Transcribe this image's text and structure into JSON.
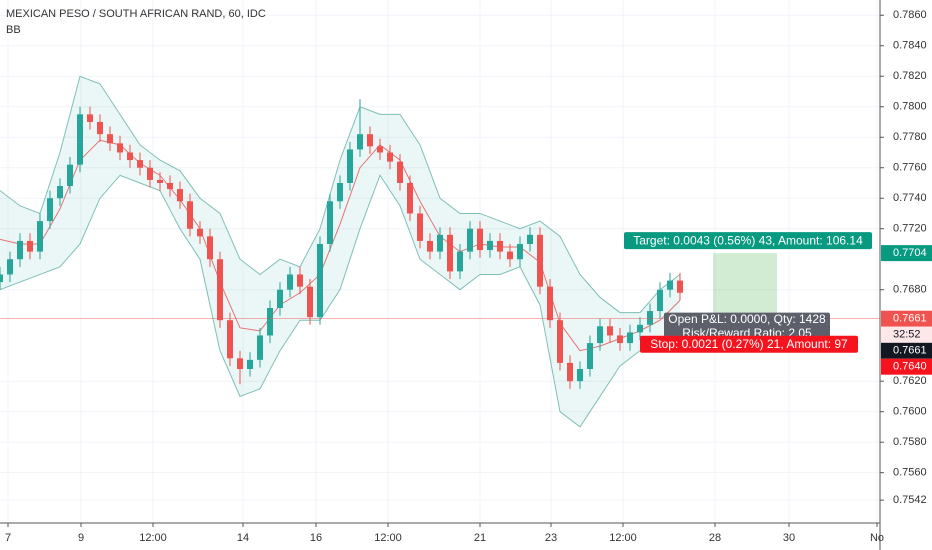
{
  "chart_data": {
    "type": "candlestick",
    "title": "MEXICAN PESO / SOUTH AFRICAN RAND, 60, IDC",
    "indicator": "BB",
    "xlim": [
      0,
      88
    ],
    "ylim": [
      0.7527,
      0.787
    ],
    "grid": true,
    "xticks": [
      {
        "value": 0.8,
        "label": "7"
      },
      {
        "value": 8.1,
        "label": "9"
      },
      {
        "value": 15.3,
        "label": "12:00"
      },
      {
        "value": 24.3,
        "label": "14"
      },
      {
        "value": 31.6,
        "label": "16"
      },
      {
        "value": 38.8,
        "label": "12:00"
      },
      {
        "value": 48.0,
        "label": "21"
      },
      {
        "value": 55.1,
        "label": "23"
      },
      {
        "value": 62.3,
        "label": "12:00"
      },
      {
        "value": 71.5,
        "label": "28"
      },
      {
        "value": 78.9,
        "label": "30"
      },
      {
        "value": 87.7,
        "label": "No"
      }
    ],
    "yticks": [
      {
        "value": 0.786,
        "label": "0.7860"
      },
      {
        "value": 0.784,
        "label": "0.7840"
      },
      {
        "value": 0.782,
        "label": "0.7820"
      },
      {
        "value": 0.78,
        "label": "0.7800"
      },
      {
        "value": 0.778,
        "label": "0.7780"
      },
      {
        "value": 0.776,
        "label": "0.7760"
      },
      {
        "value": 0.774,
        "label": "0.7740"
      },
      {
        "value": 0.772,
        "label": "0.7720"
      },
      {
        "value": 0.768,
        "label": "0.7680"
      },
      {
        "value": 0.762,
        "label": "0.7620"
      },
      {
        "value": 0.76,
        "label": "0.7600"
      },
      {
        "value": 0.758,
        "label": "0.7580"
      },
      {
        "value": 0.756,
        "label": "0.7560"
      },
      {
        "value": 0.7542,
        "label": "0.7542"
      }
    ],
    "candles": {
      "up_color": "#26a69a",
      "down_color": "#ef5350",
      "x": [
        0,
        1,
        2,
        3,
        4,
        5,
        6,
        7,
        8,
        9,
        10,
        11,
        12,
        13,
        14,
        15,
        16,
        17,
        18,
        19,
        20,
        21,
        22,
        23,
        24,
        25,
        26,
        27,
        28,
        29,
        30,
        31,
        32,
        33,
        34,
        35,
        36,
        37,
        38,
        39,
        40,
        41,
        42,
        43,
        44,
        45,
        46,
        47,
        48,
        49,
        50,
        51,
        52,
        53,
        54,
        55,
        56,
        57,
        58,
        59,
        60,
        61,
        62,
        63,
        64,
        65,
        66,
        67,
        68
      ],
      "open": [
        0.7685,
        0.769,
        0.77,
        0.7712,
        0.7705,
        0.7725,
        0.774,
        0.7748,
        0.7762,
        0.7795,
        0.779,
        0.7782,
        0.7776,
        0.777,
        0.7765,
        0.776,
        0.7752,
        0.775,
        0.7746,
        0.7738,
        0.772,
        0.7715,
        0.77,
        0.766,
        0.7635,
        0.7628,
        0.7634,
        0.765,
        0.7668,
        0.768,
        0.769,
        0.7682,
        0.7662,
        0.771,
        0.7738,
        0.775,
        0.7772,
        0.7782,
        0.7774,
        0.777,
        0.7764,
        0.775,
        0.773,
        0.7712,
        0.7705,
        0.7716,
        0.7692,
        0.7705,
        0.772,
        0.7706,
        0.7712,
        0.7705,
        0.77,
        0.771,
        0.7716,
        0.7682,
        0.766,
        0.7632,
        0.762,
        0.7628,
        0.7645,
        0.7656,
        0.765,
        0.7645,
        0.7652,
        0.7657,
        0.7666,
        0.768,
        0.7686
      ],
      "high": [
        0.7695,
        0.7705,
        0.7717,
        0.7717,
        0.773,
        0.7745,
        0.7753,
        0.7767,
        0.78,
        0.78,
        0.7795,
        0.7787,
        0.7781,
        0.7775,
        0.777,
        0.7765,
        0.7757,
        0.7755,
        0.7751,
        0.7743,
        0.7725,
        0.772,
        0.7705,
        0.7665,
        0.764,
        0.7639,
        0.7655,
        0.7673,
        0.7685,
        0.7695,
        0.7695,
        0.7687,
        0.7715,
        0.7743,
        0.7755,
        0.7777,
        0.7805,
        0.7787,
        0.7779,
        0.7775,
        0.7769,
        0.7755,
        0.7735,
        0.7717,
        0.7721,
        0.7721,
        0.771,
        0.7725,
        0.7725,
        0.7717,
        0.7717,
        0.771,
        0.7715,
        0.7721,
        0.7721,
        0.7687,
        0.7665,
        0.7637,
        0.7633,
        0.765,
        0.7661,
        0.7661,
        0.7655,
        0.7657,
        0.7662,
        0.7671,
        0.7685,
        0.7691,
        0.7691
      ],
      "low": [
        0.768,
        0.7685,
        0.7695,
        0.77,
        0.77,
        0.772,
        0.7735,
        0.7743,
        0.7757,
        0.7785,
        0.7777,
        0.7771,
        0.7765,
        0.776,
        0.7755,
        0.7747,
        0.7745,
        0.7741,
        0.7733,
        0.7715,
        0.771,
        0.7695,
        0.7655,
        0.763,
        0.7618,
        0.7623,
        0.7629,
        0.7645,
        0.7663,
        0.7675,
        0.7677,
        0.7657,
        0.7657,
        0.7705,
        0.7733,
        0.7745,
        0.7767,
        0.7769,
        0.7765,
        0.7759,
        0.7745,
        0.7725,
        0.7707,
        0.77,
        0.77,
        0.7687,
        0.7687,
        0.77,
        0.7701,
        0.7701,
        0.77,
        0.7695,
        0.7695,
        0.7705,
        0.7677,
        0.7655,
        0.7627,
        0.7615,
        0.7615,
        0.7623,
        0.764,
        0.7645,
        0.764,
        0.764,
        0.7647,
        0.7652,
        0.7661,
        0.7675,
        0.7673
      ],
      "close": [
        0.769,
        0.77,
        0.7712,
        0.7705,
        0.7725,
        0.774,
        0.7748,
        0.7762,
        0.7795,
        0.779,
        0.7782,
        0.7776,
        0.777,
        0.7765,
        0.776,
        0.7752,
        0.775,
        0.7746,
        0.7738,
        0.772,
        0.7715,
        0.77,
        0.766,
        0.7635,
        0.7628,
        0.7634,
        0.765,
        0.7668,
        0.768,
        0.769,
        0.7682,
        0.7662,
        0.771,
        0.7738,
        0.775,
        0.7772,
        0.7782,
        0.7774,
        0.777,
        0.7764,
        0.775,
        0.773,
        0.7712,
        0.7705,
        0.7716,
        0.7692,
        0.7705,
        0.772,
        0.7706,
        0.7712,
        0.7705,
        0.77,
        0.771,
        0.7716,
        0.7682,
        0.766,
        0.7632,
        0.762,
        0.7628,
        0.7645,
        0.7656,
        0.765,
        0.7645,
        0.7652,
        0.7657,
        0.7666,
        0.768,
        0.7686,
        0.7678
      ]
    },
    "bands": {
      "fill": "rgba(38,166,154,0.09)",
      "edge_color": "#7fbfb6",
      "middle_color": "#e57373",
      "x": [
        0,
        2,
        4,
        6,
        8,
        10,
        12,
        14,
        16,
        18,
        20,
        22,
        24,
        26,
        28,
        30,
        32,
        34,
        36,
        38,
        40,
        42,
        44,
        46,
        48,
        50,
        52,
        54,
        56,
        58,
        60,
        62,
        64,
        66,
        68
      ],
      "upper": [
        0.7745,
        0.7735,
        0.773,
        0.777,
        0.782,
        0.7815,
        0.7795,
        0.7775,
        0.7765,
        0.7758,
        0.774,
        0.773,
        0.77,
        0.769,
        0.77,
        0.7695,
        0.772,
        0.7765,
        0.78,
        0.7795,
        0.7795,
        0.7775,
        0.774,
        0.773,
        0.773,
        0.7725,
        0.772,
        0.7725,
        0.7715,
        0.769,
        0.7675,
        0.7665,
        0.7665,
        0.768,
        0.769
      ],
      "middle": [
        0.7713,
        0.771,
        0.771,
        0.7733,
        0.7765,
        0.7778,
        0.7775,
        0.7763,
        0.7755,
        0.7739,
        0.772,
        0.7685,
        0.7655,
        0.7653,
        0.767,
        0.7678,
        0.769,
        0.7723,
        0.776,
        0.7775,
        0.7765,
        0.7738,
        0.7715,
        0.7705,
        0.771,
        0.7708,
        0.7708,
        0.7698,
        0.7658,
        0.764,
        0.7643,
        0.7648,
        0.7653,
        0.766,
        0.7673
      ],
      "lower": [
        0.768,
        0.7685,
        0.769,
        0.7695,
        0.771,
        0.774,
        0.7755,
        0.775,
        0.7745,
        0.772,
        0.77,
        0.764,
        0.761,
        0.7615,
        0.764,
        0.766,
        0.766,
        0.768,
        0.772,
        0.7755,
        0.7735,
        0.77,
        0.769,
        0.768,
        0.769,
        0.769,
        0.7695,
        0.767,
        0.76,
        0.759,
        0.761,
        0.763,
        0.764,
        0.764,
        0.7655
      ]
    },
    "position": {
      "x_start": 71.3,
      "x_end": 77.7,
      "entry": 0.7661,
      "target": 0.7704,
      "stop": 0.764,
      "target_label": "Target: 0.0043 (0.56%) 43, Amount: 106.14",
      "pnl_label": "Open P&L: 0.0000, Qty: 1428",
      "ratio_label": "Risk/Reward Ratio: 2.05",
      "stop_label": "Stop: 0.0021 (0.27%) 21, Amount: 97"
    },
    "price_tags": [
      {
        "value": 0.7704,
        "label": "0.7704",
        "color": "#089981"
      },
      {
        "value": 0.7661,
        "label": "0.7661",
        "color": "#ef5350"
      },
      {
        "value": 0.7661,
        "label": "0.7661",
        "color": "#131722"
      },
      {
        "value": 0.764,
        "label": "0.7640",
        "color": "#f7131d"
      }
    ],
    "countdown": "32:52"
  }
}
